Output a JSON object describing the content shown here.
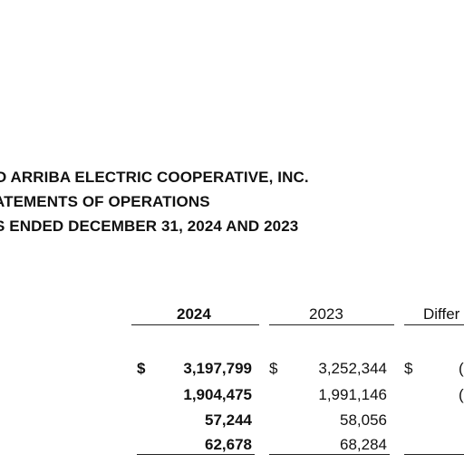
{
  "report": {
    "company": "O ARRIBA ELECTRIC COOPERATIVE, INC.",
    "statement": "ATEMENTS OF OPERATIONS",
    "period": "S ENDED DECEMBER 31, 2024 AND 2023"
  },
  "columns": {
    "current_year": "2024",
    "prior_year": "2023",
    "difference": "Differ"
  },
  "rows": [
    {
      "dollar_2024": "$",
      "value_2024": "3,197,799",
      "dollar_2023": "$",
      "value_2023": "3,252,344",
      "dollar_diff": "$",
      "diff_partial": "("
    },
    {
      "dollar_2024": "",
      "value_2024": "1,904,475",
      "dollar_2023": "",
      "value_2023": "1,991,146",
      "dollar_diff": "",
      "diff_partial": "("
    },
    {
      "dollar_2024": "",
      "value_2024": "57,244",
      "dollar_2023": "",
      "value_2023": "58,056",
      "dollar_diff": "",
      "diff_partial": ""
    },
    {
      "dollar_2024": "",
      "value_2024": "62,678",
      "dollar_2023": "",
      "value_2023": "68,284",
      "dollar_diff": "",
      "diff_partial": ""
    }
  ]
}
